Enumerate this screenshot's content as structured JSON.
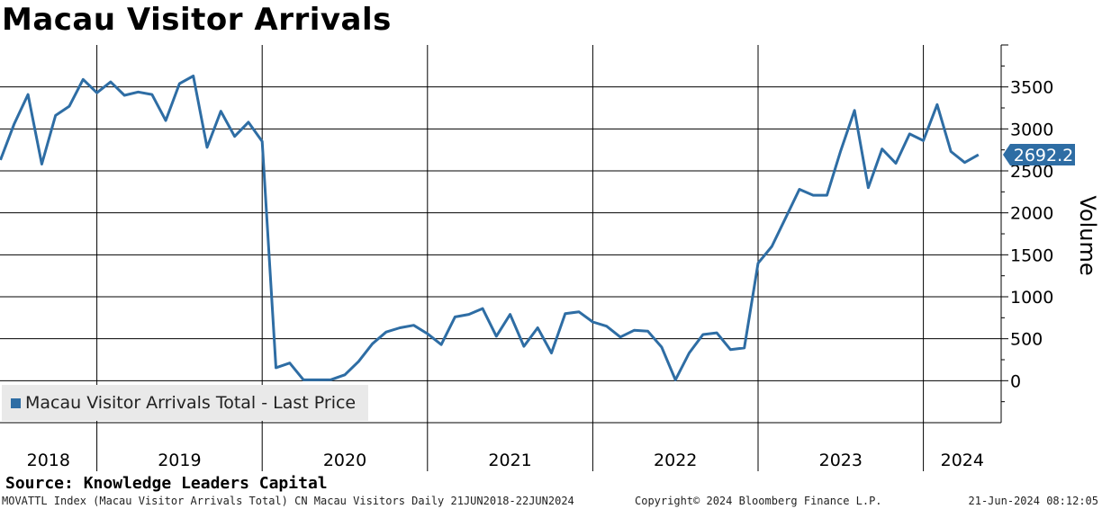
{
  "title": "Macau Visitor Arrivals",
  "legend": {
    "label": "Macau Visitor Arrivals Total - Last Price",
    "color": "#2e6da4"
  },
  "source": "Source: Knowledge Leaders Capital",
  "footer": {
    "left": "MOVATTL Index (Macau Visitor Arrivals Total) CN Macau Visitors  Daily 21JUN2018-22JUN2024",
    "middle": "Copyright© 2024 Bloomberg Finance L.P.",
    "right": "21-Jun-2024 08:12:05"
  },
  "chart_data": {
    "type": "line",
    "title": "Macau Visitor Arrivals",
    "ylabel": "Volume",
    "ylim": [
      -500,
      4000
    ],
    "yticks": [
      0,
      500,
      1000,
      1500,
      2000,
      2500,
      3000,
      3500
    ],
    "x_year_labels": [
      "2018",
      "2019",
      "2020",
      "2021",
      "2022",
      "2023",
      "2024"
    ],
    "x_range": [
      "2018-06",
      "2024-06"
    ],
    "last_value_label": "2692.2",
    "line_color": "#2e6da4",
    "grid": true,
    "legend_position": "bottom-left",
    "series": [
      {
        "name": "Macau Visitor Arrivals Total - Last Price",
        "x": [
          "2018-06",
          "2018-07",
          "2018-08",
          "2018-09",
          "2018-10",
          "2018-11",
          "2018-12",
          "2019-01",
          "2019-02",
          "2019-03",
          "2019-04",
          "2019-05",
          "2019-06",
          "2019-07",
          "2019-08",
          "2019-09",
          "2019-10",
          "2019-11",
          "2019-12",
          "2020-01",
          "2020-02",
          "2020-03",
          "2020-04",
          "2020-05",
          "2020-06",
          "2020-07",
          "2020-08",
          "2020-09",
          "2020-10",
          "2020-11",
          "2020-12",
          "2021-01",
          "2021-02",
          "2021-03",
          "2021-04",
          "2021-05",
          "2021-06",
          "2021-07",
          "2021-08",
          "2021-09",
          "2021-10",
          "2021-11",
          "2021-12",
          "2022-01",
          "2022-02",
          "2022-03",
          "2022-04",
          "2022-05",
          "2022-06",
          "2022-07",
          "2022-08",
          "2022-09",
          "2022-10",
          "2022-11",
          "2022-12",
          "2023-01",
          "2023-02",
          "2023-03",
          "2023-04",
          "2023-05",
          "2023-06",
          "2023-07",
          "2023-08",
          "2023-09",
          "2023-10",
          "2023-11",
          "2023-12",
          "2024-01",
          "2024-02",
          "2024-03",
          "2024-04",
          "2024-05"
        ],
        "values": [
          2630,
          3060,
          3410,
          2580,
          3160,
          3270,
          3590,
          3430,
          3560,
          3400,
          3440,
          3410,
          3100,
          3540,
          3630,
          2780,
          3210,
          2910,
          3080,
          2850,
          155,
          210,
          10,
          10,
          12,
          70,
          230,
          440,
          580,
          630,
          660,
          560,
          430,
          760,
          790,
          860,
          530,
          790,
          410,
          630,
          330,
          800,
          820,
          700,
          650,
          520,
          600,
          590,
          400,
          10,
          330,
          550,
          570,
          370,
          390,
          1400,
          1600,
          1940,
          2280,
          2210,
          2210,
          2740,
          3220,
          2300,
          2760,
          2590,
          2940,
          2860,
          3290,
          2730,
          2600,
          2692.2
        ]
      }
    ]
  }
}
